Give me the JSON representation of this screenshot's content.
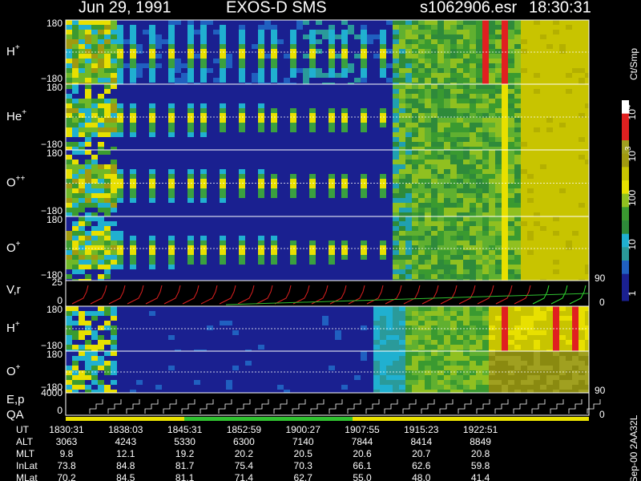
{
  "header": {
    "date": "Jun 29, 1991",
    "instrument": "EXOS-D SMS",
    "file": "s1062906.esr",
    "time": "18:30:31"
  },
  "panels": [
    {
      "label": "H",
      "sup": "+",
      "top": "180",
      "bottom": "−180"
    },
    {
      "label": "He",
      "sup": "+",
      "top": "180",
      "bottom": "−180"
    },
    {
      "label": "O",
      "sup": "++",
      "top": "180",
      "bottom": "−180"
    },
    {
      "label": "O",
      "sup": "+",
      "top": "180",
      "bottom": "−180"
    },
    {
      "label": "H",
      "sup": "+",
      "top": "180",
      "bottom": "−180"
    },
    {
      "label": "O",
      "sup": "+",
      "top": "180",
      "bottom": "−180"
    }
  ],
  "vr_panel": {
    "label": "V,r",
    "top": "25",
    "bottom": "0",
    "right_top": "90",
    "right_bottom": "0"
  },
  "ep_panel": {
    "label": "E,p",
    "qa": "QA",
    "top": "4000",
    "bottom": "0",
    "right_top": "90",
    "right_bottom": "0"
  },
  "colorbar": {
    "unit": "Ct/Smp",
    "ticks": [
      {
        "base": "10",
        "sup": "4"
      },
      {
        "base": "10",
        "sup": "3"
      },
      {
        "base": "100"
      },
      {
        "base": "10"
      },
      {
        "base": "1"
      }
    ]
  },
  "footer": "Sep-00 2AA32L",
  "table": {
    "rows": [
      {
        "label": "UT",
        "values": [
          "1830:31",
          "1838:03",
          "1845:31",
          "1852:59",
          "1900:27",
          "1907:55",
          "1915:23",
          "1922:51"
        ]
      },
      {
        "label": "ALT",
        "values": [
          "3063",
          "4243",
          "5330",
          "6300",
          "7140",
          "7844",
          "8414",
          "8849"
        ]
      },
      {
        "label": "MLT",
        "values": [
          "9.8",
          "12.1",
          "19.2",
          "20.2",
          "20.5",
          "20.6",
          "20.7",
          "20.8"
        ]
      },
      {
        "label": "InLat",
        "values": [
          "73.8",
          "84.8",
          "81.7",
          "75.4",
          "70.3",
          "66.1",
          "62.6",
          "59.8"
        ]
      },
      {
        "label": "MLat",
        "values": [
          "70.2",
          "84.5",
          "81.1",
          "71.4",
          "62.7",
          "55.0",
          "48.0",
          "41.4"
        ]
      }
    ]
  }
}
